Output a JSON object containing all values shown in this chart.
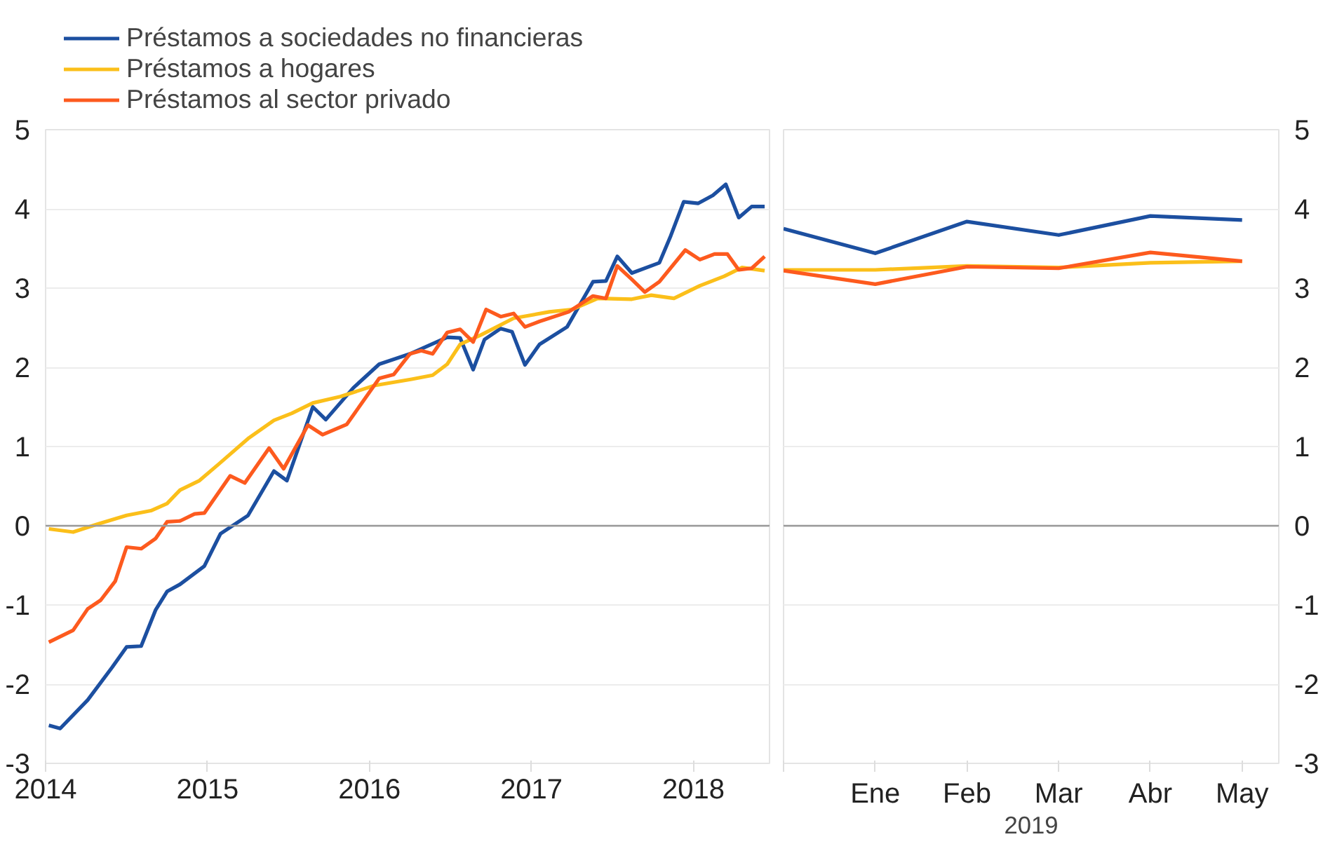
{
  "chart_data": [
    {
      "type": "line",
      "xlim": [
        2014,
        2018.47
      ],
      "xticks": [
        2014,
        2015,
        2016,
        2017,
        2018
      ],
      "ylim": [
        -3,
        5
      ],
      "yticks": [
        -3,
        -2,
        -1,
        0,
        1,
        2,
        3,
        4,
        5
      ],
      "grid": "y",
      "legend": "top left",
      "line_style": "solid",
      "ref_lines": [
        {
          "axis": "y",
          "value": 0,
          "color": "#9a9a9a"
        }
      ],
      "series": [
        {
          "name": "Préstamos a sociedades no financieras",
          "color": "#1c4fa0",
          "x": [
            2014.02,
            2014.09,
            2014.26,
            2014.41,
            2014.5,
            2014.59,
            2014.68,
            2014.75,
            2014.83,
            2014.98,
            2015.08,
            2015.25,
            2015.41,
            2015.49,
            2015.65,
            2015.73,
            2015.9,
            2016.06,
            2016.25,
            2016.48,
            2016.56,
            2016.64,
            2016.71,
            2016.81,
            2016.88,
            2016.96,
            2017.05,
            2017.22,
            2017.38,
            2017.46,
            2017.53,
            2017.62,
            2017.79,
            2017.86,
            2017.94,
            2018.03,
            2018.12,
            2018.2,
            2018.28,
            2018.36,
            2018.44
          ],
          "values": [
            -2.52,
            -2.56,
            -2.2,
            -1.79,
            -1.53,
            -1.52,
            -1.06,
            -0.83,
            -0.74,
            -0.51,
            -0.1,
            0.13,
            0.69,
            0.57,
            1.5,
            1.34,
            1.74,
            2.04,
            2.17,
            2.38,
            2.37,
            1.97,
            2.35,
            2.49,
            2.45,
            2.03,
            2.29,
            2.51,
            3.08,
            3.09,
            3.4,
            3.19,
            3.32,
            3.66,
            4.09,
            4.07,
            4.17,
            4.31,
            3.89,
            4.03,
            4.03
          ]
        },
        {
          "name": "Préstamos a hogares",
          "color": "#fbbf1a",
          "x": [
            2014.02,
            2014.17,
            2014.32,
            2014.5,
            2014.65,
            2014.75,
            2014.83,
            2014.95,
            2015.07,
            2015.25,
            2015.41,
            2015.52,
            2015.65,
            2015.82,
            2016.03,
            2016.26,
            2016.39,
            2016.48,
            2016.56,
            2016.69,
            2016.89,
            2017.11,
            2017.25,
            2017.41,
            2017.62,
            2017.74,
            2017.88,
            2018.04,
            2018.19,
            2018.3,
            2018.44
          ],
          "values": [
            -0.04,
            -0.08,
            0.02,
            0.13,
            0.19,
            0.28,
            0.45,
            0.57,
            0.78,
            1.1,
            1.33,
            1.42,
            1.55,
            1.63,
            1.77,
            1.85,
            1.9,
            2.04,
            2.29,
            2.41,
            2.62,
            2.7,
            2.73,
            2.87,
            2.86,
            2.91,
            2.87,
            3.03,
            3.15,
            3.26,
            3.22
          ]
        },
        {
          "name": "Préstamos al sector privado",
          "color": "#fd5a1e",
          "x": [
            2014.02,
            2014.17,
            2014.26,
            2014.34,
            2014.43,
            2014.5,
            2014.59,
            2014.68,
            2014.75,
            2014.83,
            2014.92,
            2014.98,
            2015.14,
            2015.23,
            2015.38,
            2015.47,
            2015.62,
            2015.71,
            2015.86,
            2016.06,
            2016.15,
            2016.25,
            2016.32,
            2016.39,
            2016.48,
            2016.56,
            2016.64,
            2016.72,
            2016.81,
            2016.89,
            2016.96,
            2017.05,
            2017.23,
            2017.38,
            2017.46,
            2017.53,
            2017.62,
            2017.7,
            2017.79,
            2017.95,
            2018.04,
            2018.13,
            2018.21,
            2018.28,
            2018.36,
            2018.44
          ],
          "values": [
            -1.47,
            -1.32,
            -1.05,
            -0.94,
            -0.7,
            -0.27,
            -0.29,
            -0.16,
            0.05,
            0.06,
            0.15,
            0.16,
            0.63,
            0.54,
            0.98,
            0.72,
            1.27,
            1.15,
            1.28,
            1.86,
            1.91,
            2.17,
            2.21,
            2.17,
            2.44,
            2.48,
            2.32,
            2.73,
            2.64,
            2.68,
            2.51,
            2.58,
            2.7,
            2.9,
            2.87,
            3.28,
            3.11,
            2.95,
            3.08,
            3.48,
            3.36,
            3.43,
            3.43,
            3.23,
            3.25,
            3.4
          ]
        }
      ]
    },
    {
      "type": "line",
      "categories": [
        null,
        "Ene",
        "Feb",
        "Mar",
        "Abr",
        "May"
      ],
      "xlabel": "2019",
      "ylim": [
        -3,
        5
      ],
      "yticks": [
        -3,
        -2,
        -1,
        0,
        1,
        2,
        3,
        4,
        5
      ],
      "grid": "y",
      "line_style": "solid",
      "ref_lines": [
        {
          "axis": "y",
          "value": 0,
          "color": "#9a9a9a"
        }
      ],
      "series": [
        {
          "color": "#1c4fa0",
          "values": [
            3.75,
            3.44,
            3.84,
            3.67,
            3.91,
            3.86
          ]
        },
        {
          "color": "#fbbf1a",
          "values": [
            3.23,
            3.23,
            3.28,
            3.26,
            3.32,
            3.34
          ]
        },
        {
          "color": "#fd5a1e",
          "values": [
            3.22,
            3.05,
            3.27,
            3.25,
            3.45,
            3.34
          ]
        }
      ]
    }
  ]
}
